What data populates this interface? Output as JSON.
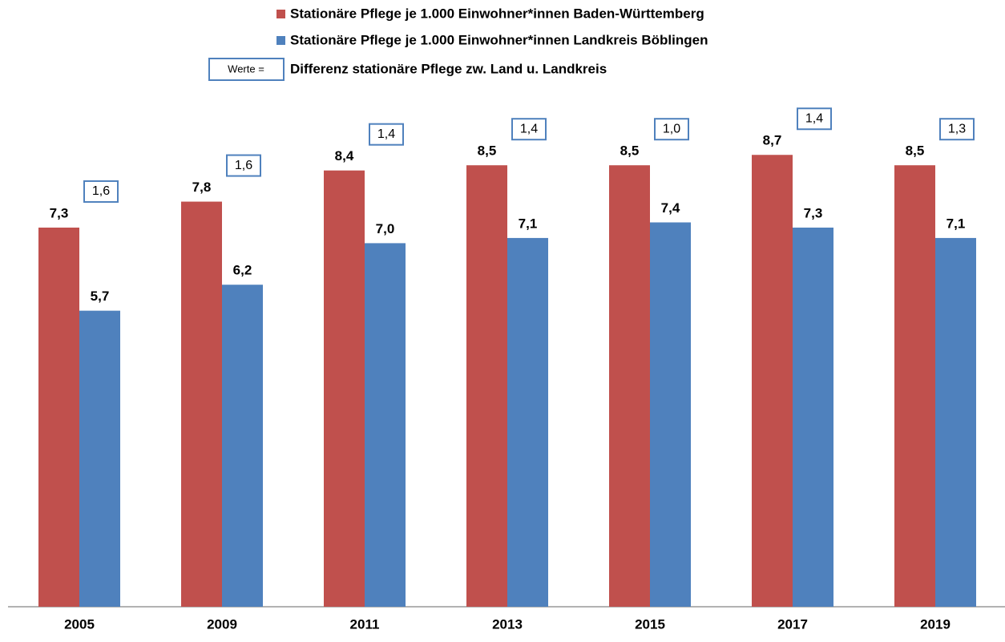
{
  "chart_data": {
    "type": "bar",
    "categories": [
      "2005",
      "2009",
      "2011",
      "2013",
      "2015",
      "2017",
      "2019"
    ],
    "series": [
      {
        "name": "Stationäre Pflege je 1.000 Einwohner*innen Baden-Württemberg",
        "color": "#c0504d",
        "values": [
          7.3,
          7.8,
          8.4,
          8.5,
          8.5,
          8.7,
          8.5
        ],
        "value_labels": [
          "7,3",
          "7,8",
          "8,4",
          "8,5",
          "8,5",
          "8,7",
          "8,5"
        ]
      },
      {
        "name": "Stationäre Pflege je 1.000 Einwohner*innen Landkreis Böblingen",
        "color": "#4f81bd",
        "values": [
          5.7,
          6.2,
          7.0,
          7.1,
          7.4,
          7.3,
          7.1
        ],
        "value_labels": [
          "5,7",
          "6,2",
          "7,0",
          "7,1",
          "7,4",
          "7,3",
          "7,1"
        ]
      }
    ],
    "differences": {
      "box_label": "Werte =",
      "name": "Differenz stationäre Pflege zw. Land u. Landkreis",
      "values": [
        1.6,
        1.6,
        1.4,
        1.4,
        1.0,
        1.4,
        1.3
      ],
      "value_labels": [
        "1,6",
        "1,6",
        "1,4",
        "1,4",
        "1,0",
        "1,4",
        "1,3"
      ]
    },
    "ylim": [
      0,
      10.5
    ]
  }
}
